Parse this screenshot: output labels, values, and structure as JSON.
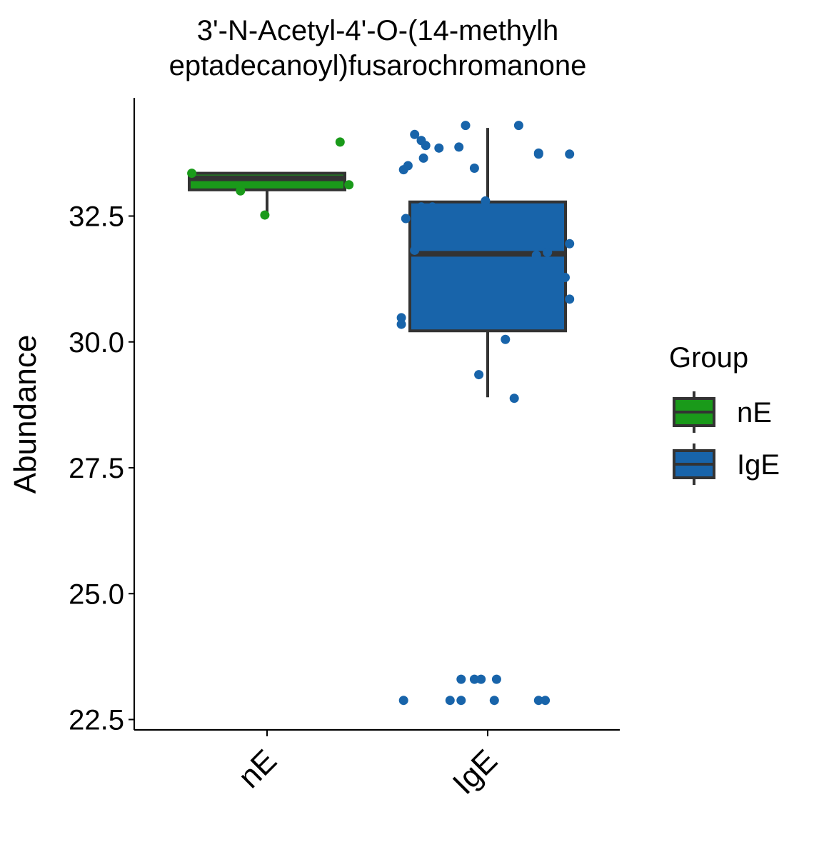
{
  "chart_data": {
    "type": "box",
    "title_lines": [
      "3'-N-Acetyl-4'-O-(14-methylh",
      "eptadecanoyl)fusarochromanone"
    ],
    "xlabel": "",
    "ylabel": "Abundance",
    "ylim": [
      22.3,
      34.7
    ],
    "yticks": [
      22.5,
      25.0,
      27.5,
      30.0,
      32.5
    ],
    "ytick_labels": [
      "22.5",
      "25.0",
      "27.5",
      "30.0",
      "32.5"
    ],
    "categories": [
      "nE",
      "IgE"
    ],
    "legend": {
      "title": "Group",
      "position": "right",
      "entries": [
        {
          "label": "nE",
          "color": "#1a9a1a"
        },
        {
          "label": "IgE",
          "color": "#1864aa"
        }
      ]
    },
    "box_outline_color": "#333333",
    "series": [
      {
        "name": "nE",
        "color": "#1a9a1a",
        "box": {
          "whisker_low": 32.52,
          "q1": 33.02,
          "median": 33.25,
          "q3": 33.35,
          "whisker_high": 33.35
        },
        "points": [
          {
            "jitter": -0.34,
            "y": 33.35
          },
          {
            "jitter": -0.12,
            "y": 33.0
          },
          {
            "jitter": -0.01,
            "y": 32.52
          },
          {
            "jitter": 0.33,
            "y": 33.97
          },
          {
            "jitter": 0.37,
            "y": 33.12
          }
        ]
      },
      {
        "name": "IgE",
        "color": "#1864aa",
        "box": {
          "whisker_low": 28.9,
          "q1": 30.22,
          "median": 31.75,
          "q3": 32.78,
          "whisker_high": 34.25
        },
        "points": [
          {
            "jitter": -0.1,
            "y": 34.3
          },
          {
            "jitter": 0.14,
            "y": 34.3
          },
          {
            "jitter": -0.33,
            "y": 34.12
          },
          {
            "jitter": -0.28,
            "y": 33.9
          },
          {
            "jitter": -0.3,
            "y": 34.0
          },
          {
            "jitter": -0.22,
            "y": 33.85
          },
          {
            "jitter": -0.13,
            "y": 33.87
          },
          {
            "jitter": -0.29,
            "y": 33.65
          },
          {
            "jitter": 0.23,
            "y": 33.75
          },
          {
            "jitter": 0.23,
            "y": 33.73
          },
          {
            "jitter": 0.37,
            "y": 33.73
          },
          {
            "jitter": -0.36,
            "y": 33.5
          },
          {
            "jitter": -0.38,
            "y": 33.42
          },
          {
            "jitter": -0.06,
            "y": 33.45
          },
          {
            "jitter": -0.3,
            "y": 32.68
          },
          {
            "jitter": -0.25,
            "y": 32.68
          },
          {
            "jitter": -0.01,
            "y": 32.8
          },
          {
            "jitter": -0.37,
            "y": 32.45
          },
          {
            "jitter": -0.33,
            "y": 31.82
          },
          {
            "jitter": 0.27,
            "y": 31.78
          },
          {
            "jitter": 0.22,
            "y": 31.72
          },
          {
            "jitter": 0.37,
            "y": 31.95
          },
          {
            "jitter": 0.35,
            "y": 31.28
          },
          {
            "jitter": 0.37,
            "y": 30.85
          },
          {
            "jitter": -0.39,
            "y": 30.48
          },
          {
            "jitter": -0.39,
            "y": 30.35
          },
          {
            "jitter": 0.08,
            "y": 30.05
          },
          {
            "jitter": -0.04,
            "y": 29.35
          },
          {
            "jitter": 0.12,
            "y": 28.88
          },
          {
            "jitter": -0.12,
            "y": 23.3
          },
          {
            "jitter": -0.06,
            "y": 23.3
          },
          {
            "jitter": -0.03,
            "y": 23.3
          },
          {
            "jitter": 0.04,
            "y": 23.3
          },
          {
            "jitter": -0.38,
            "y": 22.88
          },
          {
            "jitter": -0.17,
            "y": 22.88
          },
          {
            "jitter": -0.12,
            "y": 22.88
          },
          {
            "jitter": 0.03,
            "y": 22.88
          },
          {
            "jitter": 0.23,
            "y": 22.88
          },
          {
            "jitter": 0.26,
            "y": 22.88
          }
        ]
      }
    ]
  }
}
